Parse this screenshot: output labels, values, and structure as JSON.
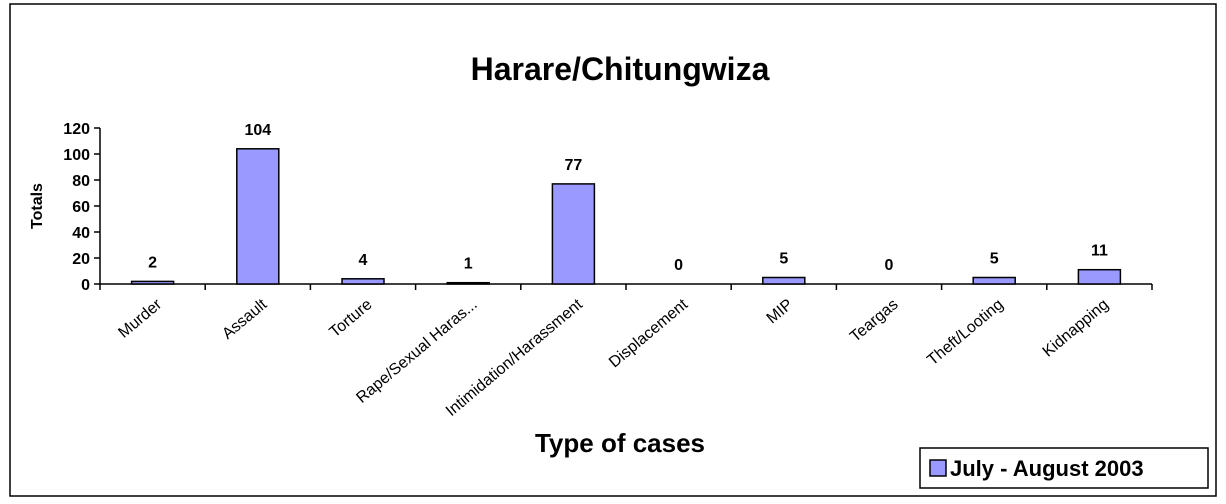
{
  "chart_data": {
    "type": "bar",
    "title": "Harare/Chitungwiza",
    "x_label": "Type of cases",
    "y_label": "Totals",
    "categories": [
      "Murder",
      "Assault",
      "Torture",
      "Rape/Sexual Haras...",
      "Intimidation/Harassment",
      "Displacement",
      "MIP",
      "Teargas",
      "Theft/Looting",
      "Kidnapping"
    ],
    "series": [
      {
        "name": "July - August 2003",
        "color": "#9999ff",
        "values": [
          2,
          104,
          4,
          1,
          77,
          0,
          5,
          0,
          5,
          11
        ]
      }
    ],
    "ylim": [
      0,
      120
    ],
    "yticks": [
      0,
      20,
      40,
      60,
      80,
      100,
      120
    ],
    "grid": false,
    "legend": "bottom-right"
  }
}
